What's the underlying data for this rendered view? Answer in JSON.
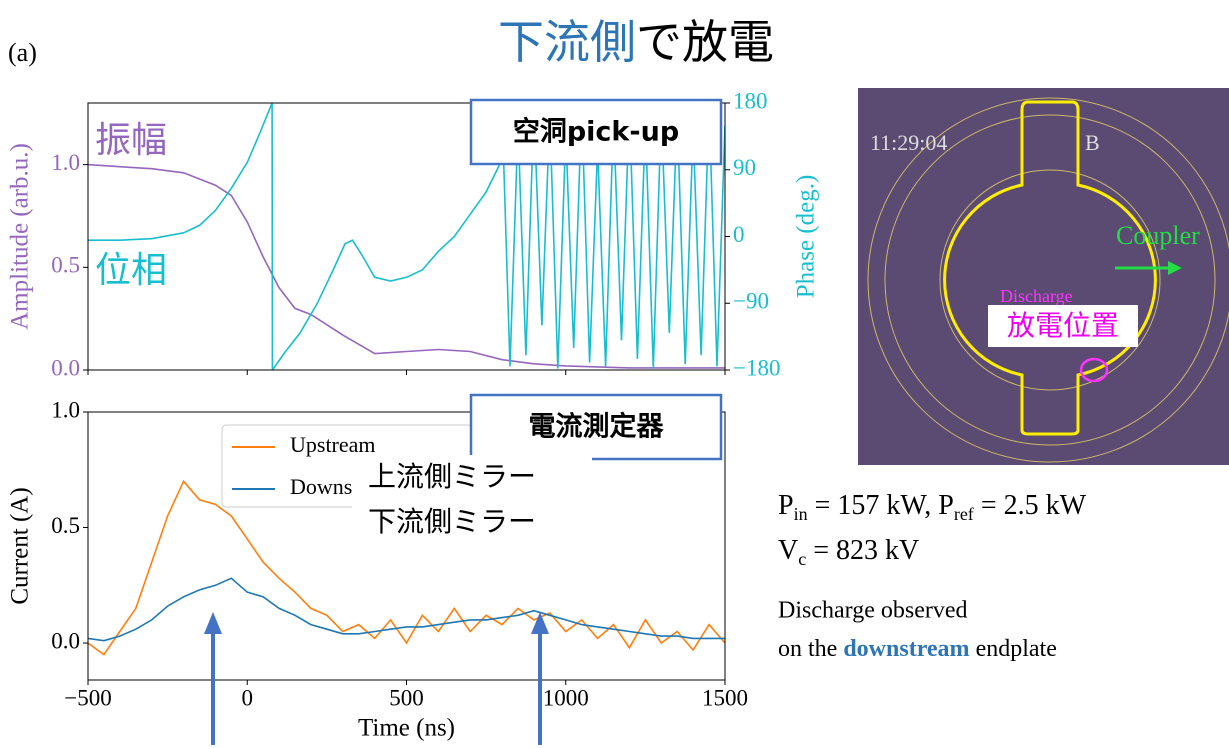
{
  "title": {
    "highlight": "下流側",
    "rest": "で放電"
  },
  "panel_label": "(a)",
  "chart_data": [
    {
      "type": "line",
      "ylabel": "Amplitude (arb.u.)",
      "y2label": "Phase (deg.)",
      "annotation": "空洞pick-up",
      "xlim": [
        -500,
        1500
      ],
      "ylim": [
        0,
        1.3
      ],
      "yticks": [
        {
          "value": 0,
          "label": "0.0"
        },
        {
          "value": 0.5,
          "label": "0.5"
        },
        {
          "value": 1,
          "label": "1.0"
        }
      ],
      "y2lim": [
        -180,
        180
      ],
      "y2ticks": [
        {
          "value": -180,
          "label": "−180"
        },
        {
          "value": -90,
          "label": "−90"
        },
        0,
        90,
        180
      ],
      "series": [
        {
          "name": "振幅",
          "color": "#9467bd",
          "x": [
            -500,
            -400,
            -300,
            -200,
            -100,
            -50,
            0,
            50,
            100,
            150,
            200,
            300,
            400,
            500,
            600,
            700,
            800,
            900,
            1000,
            1200,
            1500
          ],
          "values": [
            1.0,
            0.99,
            0.98,
            0.96,
            0.9,
            0.85,
            0.72,
            0.55,
            0.4,
            0.3,
            0.27,
            0.17,
            0.08,
            0.09,
            0.1,
            0.09,
            0.05,
            0.03,
            0.02,
            0.01,
            0.01
          ]
        },
        {
          "name": "位相",
          "color": "#17becf",
          "axis": "y2",
          "x": [
            -500,
            -400,
            -300,
            -200,
            -150,
            -100,
            -50,
            0,
            40,
            78,
            79,
            120,
            166,
            220,
            270,
            307,
            330,
            360,
            400,
            450,
            500,
            550,
            600,
            650,
            700,
            750,
            790,
            800,
            825,
            850,
            875,
            900,
            925,
            950,
            975,
            1000,
            1025,
            1050,
            1075,
            1100,
            1125,
            1150,
            1175,
            1200,
            1225,
            1250,
            1275,
            1300,
            1325,
            1350,
            1375,
            1400,
            1425,
            1450,
            1475,
            1500
          ],
          "values": [
            -5,
            -5,
            -3,
            5,
            15,
            35,
            65,
            100,
            140,
            180,
            -180,
            -155,
            -130,
            -90,
            -45,
            -10,
            -5,
            -25,
            -55,
            -60,
            -55,
            -45,
            -20,
            0,
            30,
            60,
            95,
            170,
            -175,
            150,
            -160,
            175,
            -120,
            165,
            -178,
            140,
            -150,
            178,
            -170,
            120,
            -175,
            160,
            -140,
            176,
            -165,
            155,
            -178,
            170,
            -130,
            168,
            -172,
            145,
            -160,
            178,
            -175,
            150
          ]
        }
      ]
    },
    {
      "type": "line",
      "xlabel": "Time (ns)",
      "ylabel": "Current (A)",
      "annotation": "電流測定器",
      "legend_overlay": [
        "上流側ミラー",
        "下流側ミラー"
      ],
      "xlim": [
        -500,
        1500
      ],
      "xticks": [
        {
          "value": -500,
          "label": "−500"
        },
        0,
        500,
        1000,
        1500
      ],
      "ylim": [
        -0.16,
        1.0
      ],
      "yticks": [
        {
          "value": 0,
          "label": "0.0"
        },
        {
          "value": 0.5,
          "label": "0.5"
        },
        {
          "value": 1,
          "label": "1.0"
        }
      ],
      "x": [
        -500,
        -450,
        -400,
        -350,
        -300,
        -250,
        -200,
        -150,
        -100,
        -50,
        0,
        50,
        100,
        150,
        200,
        250,
        300,
        350,
        400,
        450,
        500,
        550,
        600,
        650,
        700,
        750,
        800,
        850,
        900,
        950,
        1000,
        1050,
        1100,
        1150,
        1200,
        1250,
        1300,
        1350,
        1400,
        1450,
        1500
      ],
      "series": [
        {
          "name": "Upstream",
          "color": "#ff7f0e",
          "values": [
            0.0,
            -0.05,
            0.05,
            0.15,
            0.35,
            0.55,
            0.7,
            0.62,
            0.6,
            0.55,
            0.45,
            0.35,
            0.28,
            0.22,
            0.15,
            0.12,
            0.05,
            0.08,
            0.02,
            0.1,
            0.0,
            0.12,
            0.05,
            0.15,
            0.05,
            0.12,
            0.08,
            0.15,
            0.1,
            0.13,
            0.05,
            0.1,
            0.02,
            0.08,
            -0.02,
            0.1,
            0.0,
            0.05,
            -0.03,
            0.08,
            0.0
          ]
        },
        {
          "name": "Downstream",
          "color": "#1f77b4",
          "values": [
            0.02,
            0.01,
            0.03,
            0.06,
            0.1,
            0.16,
            0.2,
            0.23,
            0.25,
            0.28,
            0.22,
            0.2,
            0.15,
            0.12,
            0.08,
            0.06,
            0.04,
            0.04,
            0.05,
            0.06,
            0.07,
            0.07,
            0.08,
            0.09,
            0.1,
            0.1,
            0.11,
            0.12,
            0.14,
            0.12,
            0.1,
            0.08,
            0.07,
            0.06,
            0.05,
            0.04,
            0.03,
            0.03,
            0.02,
            0.02,
            0.02
          ]
        }
      ]
    }
  ],
  "photo": {
    "timestamp": "11:29:04",
    "marker": "B",
    "coupler": "Coupler",
    "discharge": "Discharge",
    "location": "放電位置"
  },
  "conditions": {
    "line1": [
      "P",
      "in",
      " = 157 kW, P",
      "ref",
      " = 2.5 kW"
    ],
    "line2": [
      "V",
      "c",
      " = 823 kV"
    ]
  },
  "note": {
    "line1": "Discharge observed",
    "before": "on the ",
    "bold": "downstream",
    "after": " endplate"
  }
}
